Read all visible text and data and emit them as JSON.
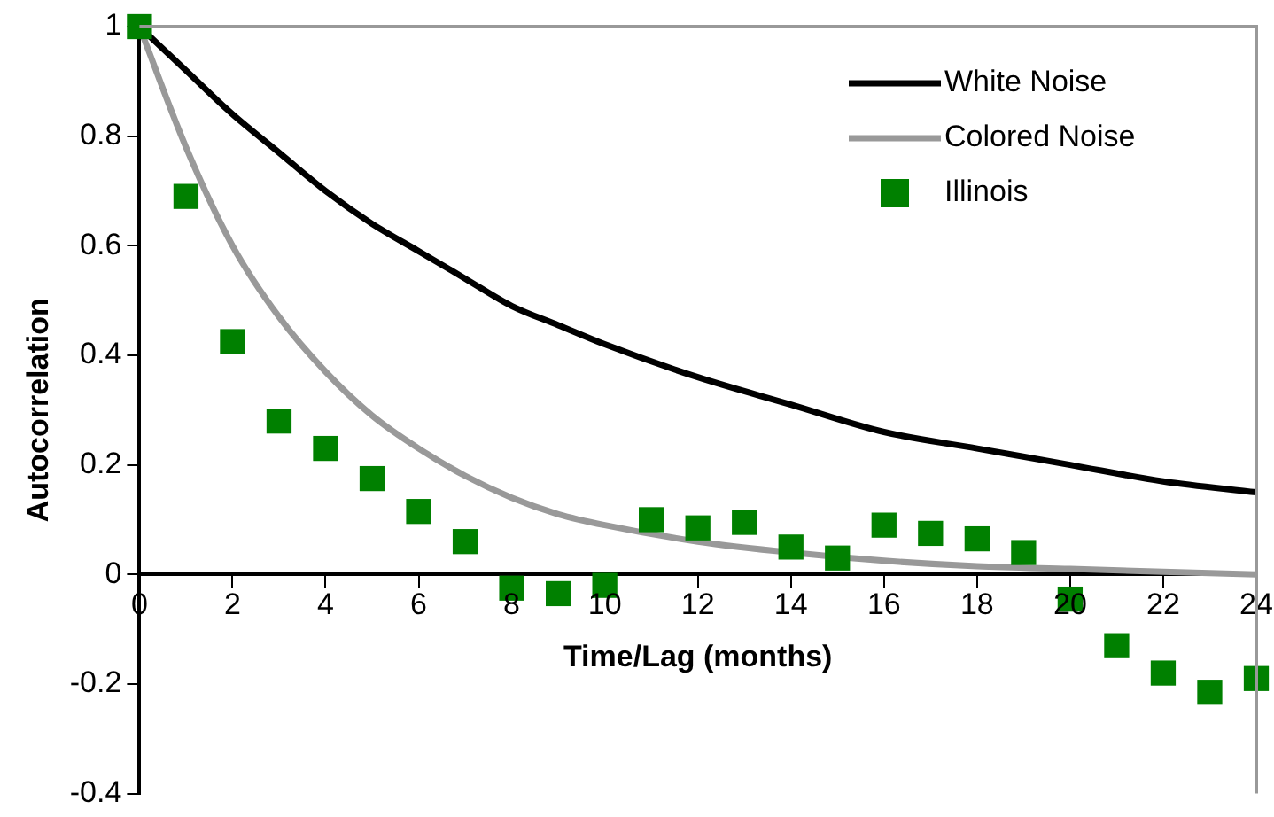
{
  "chart_data": {
    "type": "line",
    "xlabel": "Time/Lag (months)",
    "ylabel": "Autocorrelation",
    "xlim": [
      0,
      24
    ],
    "xticks": [
      0,
      2,
      4,
      6,
      8,
      10,
      12,
      14,
      16,
      18,
      20,
      22,
      24
    ],
    "ylim": [
      -0.4,
      1
    ],
    "yticks": [
      -0.4,
      -0.2,
      0,
      0.2,
      0.4,
      0.6,
      0.8,
      1
    ],
    "grid": false,
    "legend": "top right",
    "series": [
      {
        "name": "White Noise",
        "type": "line",
        "color": "#000000",
        "marker": "none",
        "x": [
          0,
          1,
          2,
          3,
          4,
          5,
          6,
          7,
          8,
          9,
          10,
          12,
          14,
          16,
          18,
          20,
          22,
          24
        ],
        "values": [
          1,
          0.92,
          0.84,
          0.77,
          0.7,
          0.64,
          0.59,
          0.54,
          0.49,
          0.455,
          0.42,
          0.36,
          0.31,
          0.26,
          0.23,
          0.2,
          0.17,
          0.15
        ]
      },
      {
        "name": "Colored Noise",
        "type": "line",
        "color": "#999999",
        "marker": "none",
        "x": [
          0,
          1,
          2,
          3,
          4,
          5,
          6,
          7,
          8,
          9,
          10,
          12,
          14,
          16,
          18,
          20,
          22,
          24
        ],
        "values": [
          1,
          0.78,
          0.6,
          0.47,
          0.37,
          0.29,
          0.23,
          0.18,
          0.14,
          0.11,
          0.09,
          0.06,
          0.04,
          0.025,
          0.015,
          0.01,
          0.005,
          0
        ]
      },
      {
        "name": "Illinois",
        "type": "scatter",
        "color": "#008000",
        "marker": "square",
        "x": [
          0,
          1,
          2,
          3,
          4,
          5,
          6,
          7,
          8,
          9,
          10,
          11,
          12,
          13,
          14,
          15,
          16,
          17,
          18,
          19,
          20,
          21,
          22,
          23,
          24
        ],
        "values": [
          1,
          0.69,
          0.425,
          0.28,
          0.23,
          0.175,
          0.115,
          0.06,
          -0.025,
          -0.035,
          -0.02,
          0.1,
          0.085,
          0.095,
          0.05,
          0.03,
          0.09,
          0.075,
          0.065,
          0.04,
          -0.045,
          -0.13,
          -0.18,
          -0.215,
          -0.19
        ]
      }
    ]
  }
}
